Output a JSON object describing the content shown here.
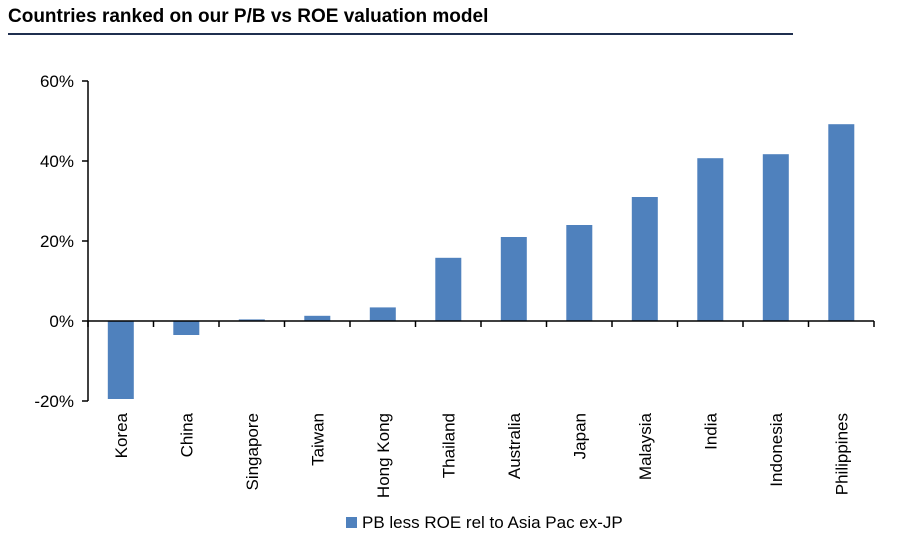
{
  "chart_data": {
    "type": "bar",
    "title": "Countries ranked on our P/B vs ROE valuation model",
    "categories": [
      "Korea",
      "China",
      "Singapore",
      "Taiwan",
      "Hong Kong",
      "Thailand",
      "Australia",
      "Japan",
      "Malaysia",
      "India",
      "Indonesia",
      "Philippines"
    ],
    "series": [
      {
        "name": "PB less ROE rel to Asia Pac ex-JP",
        "values": [
          -19.5,
          -3.5,
          0.4,
          1.3,
          3.4,
          15.8,
          21.0,
          24.0,
          31.0,
          40.7,
          41.7,
          49.2
        ],
        "color": "#4f81bd"
      }
    ],
    "ylim": [
      -20,
      60
    ],
    "yticks": [
      "-20%",
      "0%",
      "20%",
      "40%",
      "60%"
    ],
    "ytick_values": [
      -20,
      0,
      20,
      40,
      60
    ],
    "grid": false,
    "legend_position": "bottom"
  }
}
